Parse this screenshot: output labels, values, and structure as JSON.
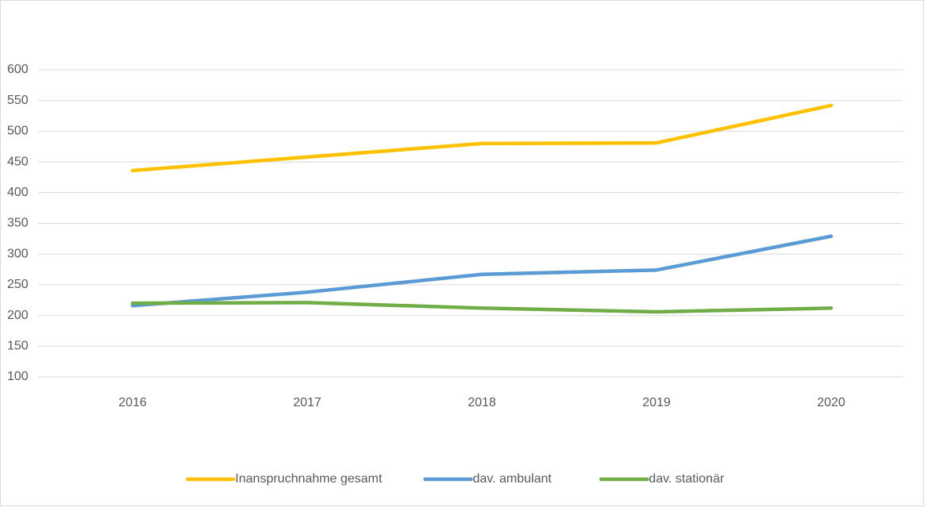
{
  "chart_data": {
    "type": "line",
    "categories": [
      "2016",
      "2017",
      "2018",
      "2019",
      "2020"
    ],
    "series": [
      {
        "name": "Inanspruchnahme gesamt",
        "color": "#ffc000",
        "values": [
          436,
          458,
          480,
          481,
          542
        ]
      },
      {
        "name": "dav. ambulant",
        "color": "#5b9bd5",
        "values": [
          216,
          238,
          267,
          274,
          329
        ]
      },
      {
        "name": "dav. stationär",
        "color": "#70ad47",
        "values": [
          220,
          221,
          212,
          206,
          212
        ]
      }
    ],
    "ylim": [
      100,
      600
    ],
    "yticks": [
      100,
      150,
      200,
      250,
      300,
      350,
      400,
      450,
      500,
      550,
      600
    ],
    "grid": true,
    "legend": "bottom"
  }
}
